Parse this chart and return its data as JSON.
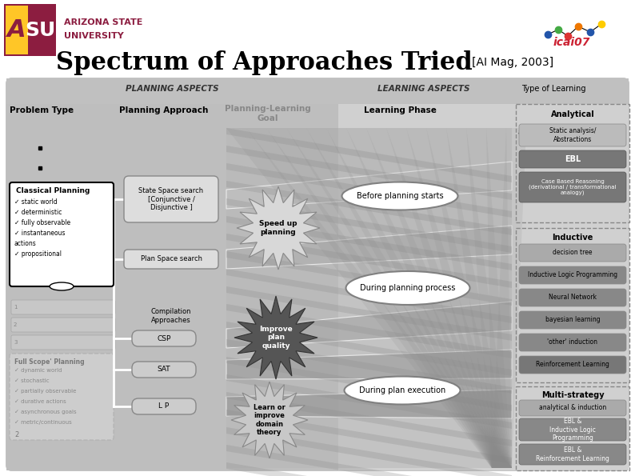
{
  "title": "Spectrum of Approaches Tried",
  "subtitle": "[AI Mag, 2003]",
  "bg_color": "#ffffff",
  "planning_aspects_label": "PLANNING ASPECTS",
  "learning_aspects_label": "LEARNING ASPECTS",
  "type_of_learning_label": "Type of Learning",
  "col_headers": [
    "Problem Type",
    "Planning Approach",
    "Planning-Learning\nGoal",
    "Learning Phase"
  ],
  "classical_planning_title": "Classical Planning",
  "classical_planning_items": [
    "✓ static world",
    "✓ deterministic",
    "✓ fully observable",
    "✓ instantaneous",
    "actions",
    "✓ propositional"
  ],
  "full_scope_title": "Full Scope' Planning",
  "full_scope_items": [
    "✓ dynamic world",
    "✓ stochastic",
    "✓ partially observable",
    "✓ durative actions",
    "✓ asynchronous goals",
    "✓ metric/continuous"
  ],
  "planning_approaches": [
    "State Space search\n[Conjunctive /\nDisjunctive ]",
    "Plan Space search",
    "Compilation\nApproaches",
    "CSP",
    "SAT",
    "L P"
  ],
  "planning_goals": [
    "Speed up\nplanning",
    "Improve\nplan\nquality",
    "Learn or\nimprove\ndomain\ntheory"
  ],
  "learning_phases": [
    "Before planning starts",
    "During planning process",
    "During plan execution"
  ],
  "analytical_header": "Analytical",
  "analytical_methods": [
    "Static analysis/\nAbstractions",
    "EBL",
    "Case Based Reasoning\n(derivational / transformational\nanalogy)"
  ],
  "inductive_header": "Inductive",
  "inductive_methods": [
    "decision tree",
    "Inductive Logic Programming",
    "Neural Network",
    "bayesian learning",
    "'other' induction",
    "Reinforcement Learning"
  ],
  "multi_header": "Multi-strategy",
  "multi_methods": [
    "analytical & induction",
    "EBL &\nInductive Logic\nProgramming",
    "EBL &\nReinforcement Learning"
  ],
  "asu_maroon": "#8C1D40",
  "asu_gold": "#FFC627"
}
